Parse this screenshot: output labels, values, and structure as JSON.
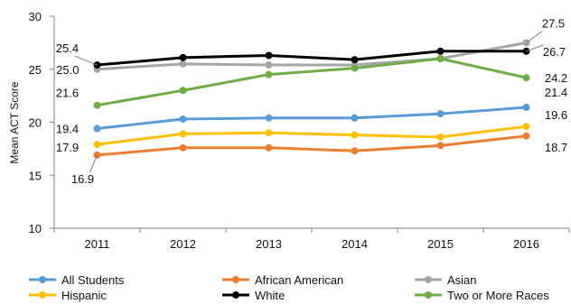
{
  "chart_data": {
    "type": "line",
    "title": "",
    "xlabel": "",
    "ylabel": "Mean ACT Score",
    "ylim": [
      10,
      30
    ],
    "yticks": [
      10,
      15,
      20,
      25,
      30
    ],
    "categories": [
      "2011",
      "2012",
      "2013",
      "2014",
      "2015",
      "2016"
    ],
    "grid": false,
    "legend": "bottom",
    "series": [
      {
        "name": "All Students",
        "color": "#5b9bd5",
        "values": [
          19.4,
          20.3,
          20.4,
          20.4,
          20.8,
          21.4
        ]
      },
      {
        "name": "African American",
        "color": "#ed7d31",
        "values": [
          16.9,
          17.6,
          17.6,
          17.3,
          17.8,
          18.7
        ]
      },
      {
        "name": "Asian",
        "color": "#a5a5a5",
        "values": [
          25.0,
          25.5,
          25.4,
          25.4,
          26.0,
          27.5
        ]
      },
      {
        "name": "Hispanic",
        "color": "#ffc000",
        "values": [
          17.9,
          18.9,
          19.0,
          18.8,
          18.6,
          19.6
        ]
      },
      {
        "name": "White",
        "color": "#000000",
        "values": [
          25.4,
          26.1,
          26.3,
          25.9,
          26.7,
          26.7
        ]
      },
      {
        "name": "Two or More Races",
        "color": "#70ad47",
        "values": [
          21.6,
          23.0,
          24.5,
          25.1,
          26.0,
          24.2
        ]
      }
    ],
    "data_labels": [
      {
        "series": 4,
        "index": 0,
        "text": "25.4"
      },
      {
        "series": 2,
        "index": 0,
        "text": "25.0"
      },
      {
        "series": 5,
        "index": 0,
        "text": "21.6"
      },
      {
        "series": 0,
        "index": 0,
        "text": "19.4"
      },
      {
        "series": 3,
        "index": 0,
        "text": "17.9"
      },
      {
        "series": 1,
        "index": 0,
        "text": "16.9"
      },
      {
        "series": 2,
        "index": 5,
        "text": "27.5"
      },
      {
        "series": 4,
        "index": 5,
        "text": "26.7"
      },
      {
        "series": 5,
        "index": 5,
        "text": "24.2"
      },
      {
        "series": 0,
        "index": 5,
        "text": "21.4"
      },
      {
        "series": 3,
        "index": 5,
        "text": "19.6"
      },
      {
        "series": 1,
        "index": 5,
        "text": "18.7"
      }
    ]
  }
}
